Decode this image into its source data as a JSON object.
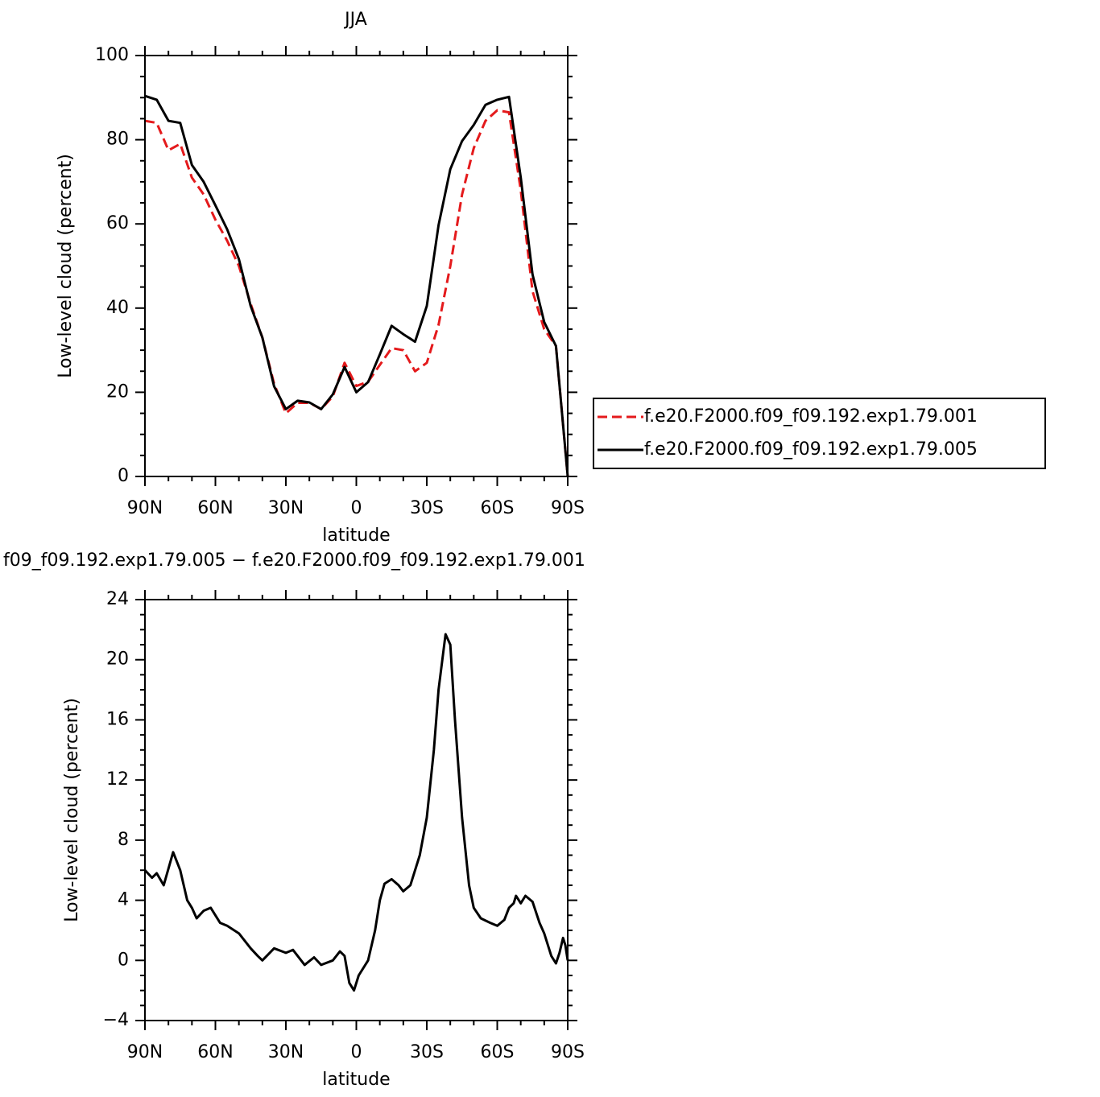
{
  "chart_data": [
    {
      "type": "line",
      "title": "JJA",
      "xlabel": "latitude",
      "ylabel": "Low-level cloud (percent)",
      "xlim": [
        90,
        -90
      ],
      "xticks": [
        {
          "value": 90,
          "label": "90N"
        },
        {
          "value": 60,
          "label": "60N"
        },
        {
          "value": 30,
          "label": "30N"
        },
        0,
        {
          "value": -30,
          "label": "30S"
        },
        {
          "value": -60,
          "label": "60S"
        },
        {
          "value": -90,
          "label": "90S"
        }
      ],
      "ylim": [
        0,
        100
      ],
      "yticks": [
        0,
        20,
        40,
        60,
        80,
        100
      ],
      "legend": "right",
      "x": [
        90,
        85,
        80,
        75,
        70,
        65,
        60,
        55,
        50,
        45,
        40,
        35,
        30,
        25,
        20,
        15,
        10,
        5,
        0,
        -5,
        -10,
        -15,
        -20,
        -25,
        -30,
        -35,
        -40,
        -45,
        -50,
        -55,
        -60,
        -65,
        -70,
        -75,
        -80,
        -85,
        -90
      ],
      "series": [
        {
          "name": "f.e20.F2000.f09_f09.192.exp1.79.001",
          "color": "#e41a1c",
          "linestyle": "dashed",
          "values": [
            84.5,
            84,
            77.5,
            79,
            71,
            67,
            61,
            56,
            50,
            41,
            33,
            22,
            15,
            17.5,
            17.5,
            16,
            19,
            27,
            21.5,
            22.5,
            26.5,
            30.5,
            30,
            25,
            27,
            36,
            50,
            67,
            78,
            84.5,
            87,
            86.5,
            68,
            44,
            35,
            31,
            0
          ]
        },
        {
          "name": "f.e20.F2000.f09_f09.192.exp1.79.005",
          "color": "#000000",
          "linestyle": "solid",
          "values": [
            90.4,
            89.5,
            84.5,
            84,
            74,
            70,
            64.4,
            58.7,
            51.6,
            40.5,
            33,
            21.4,
            16,
            18,
            17.6,
            16,
            19.5,
            26,
            20,
            22.4,
            29,
            35.8,
            33.8,
            32,
            40.5,
            59.7,
            73,
            79.7,
            83.5,
            88.3,
            89.5,
            90.2,
            71,
            48,
            36.7,
            31,
            0
          ]
        }
      ]
    },
    {
      "type": "line",
      "title": "f09_f09.192.exp1.79.005 − f.e20.F2000.f09_f09.192.exp1.79.001",
      "xlabel": "latitude",
      "ylabel": "Low-level cloud (percent)",
      "xlim": [
        90,
        -90
      ],
      "xticks": [
        {
          "value": 90,
          "label": "90N"
        },
        {
          "value": 60,
          "label": "60N"
        },
        {
          "value": 30,
          "label": "30N"
        },
        0,
        {
          "value": -30,
          "label": "30S"
        },
        {
          "value": -60,
          "label": "60S"
        },
        {
          "value": -90,
          "label": "90S"
        }
      ],
      "ylim": [
        -4,
        24
      ],
      "yticks": [
        {
          "value": -4,
          "label": "−4"
        },
        0,
        4,
        8,
        12,
        16,
        20,
        24
      ],
      "x": [
        90,
        87,
        85,
        82,
        78,
        75,
        72,
        70,
        68,
        65,
        62,
        58,
        55,
        50,
        45,
        42,
        40,
        35,
        30,
        27,
        25,
        22,
        18,
        15,
        10,
        7,
        5,
        3,
        1,
        -1,
        -5,
        -8,
        -10,
        -12,
        -15,
        -18,
        -20,
        -23,
        -27,
        -30,
        -33,
        -35,
        -38,
        -40,
        -42,
        -45,
        -48,
        -50,
        -53,
        -57,
        -60,
        -63,
        -65,
        -67,
        -68,
        -70,
        -72,
        -75,
        -78,
        -80,
        -83,
        -85,
        -86.5,
        -88,
        -89,
        -90
      ],
      "color": "#000000",
      "values": [
        6,
        5.5,
        5.8,
        5,
        7.2,
        6,
        4,
        3.5,
        2.8,
        3.3,
        3.5,
        2.5,
        2.3,
        1.8,
        0.8,
        0.3,
        0,
        0.8,
        0.5,
        0.7,
        0.3,
        -0.3,
        0.2,
        -0.3,
        0,
        0.6,
        0.3,
        -1.5,
        -2,
        -1,
        0,
        2,
        4,
        5.1,
        5.4,
        5,
        4.6,
        5,
        7,
        9.5,
        14,
        18,
        21.7,
        21,
        16,
        9.5,
        5,
        3.5,
        2.8,
        2.5,
        2.3,
        2.7,
        3.5,
        3.8,
        4.3,
        3.8,
        4.3,
        3.9,
        2.5,
        1.8,
        0.3,
        -0.2,
        0.5,
        1.5,
        1,
        0
      ]
    }
  ]
}
